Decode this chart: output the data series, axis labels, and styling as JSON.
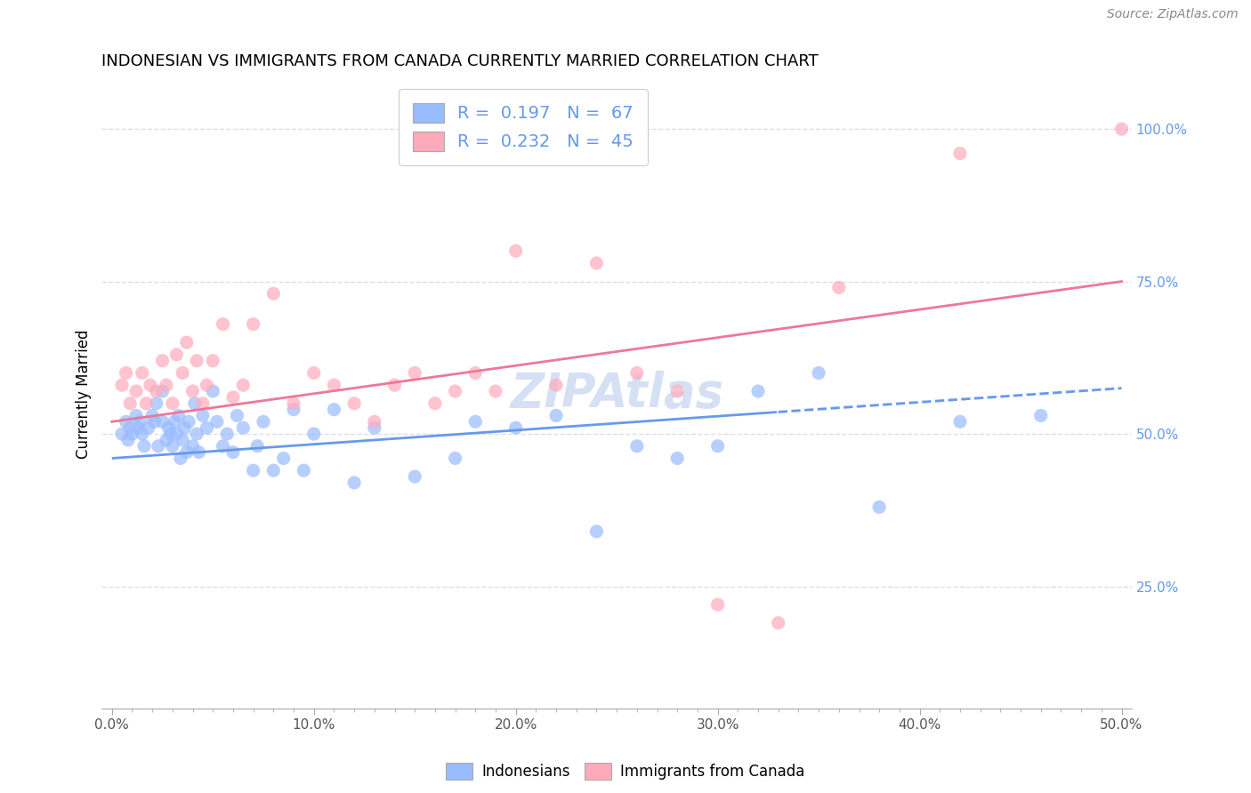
{
  "title": "INDONESIAN VS IMMIGRANTS FROM CANADA CURRENTLY MARRIED CORRELATION CHART",
  "source": "Source: ZipAtlas.com",
  "xlabel_ticks": [
    "0.0%",
    "",
    "",
    "",
    "",
    "",
    "",
    "",
    "",
    "",
    "10.0%",
    "",
    "",
    "",
    "",
    "",
    "",
    "",
    "",
    "",
    "20.0%",
    "",
    "",
    "",
    "",
    "",
    "",
    "",
    "",
    "",
    "30.0%",
    "",
    "",
    "",
    "",
    "",
    "",
    "",
    "",
    "",
    "40.0%",
    "",
    "",
    "",
    "",
    "",
    "",
    "",
    "",
    "",
    "50.0%"
  ],
  "xlabel_vals": [
    0.0,
    0.01,
    0.02,
    0.03,
    0.04,
    0.05,
    0.06,
    0.07,
    0.08,
    0.09,
    0.1,
    0.11,
    0.12,
    0.13,
    0.14,
    0.15,
    0.16,
    0.17,
    0.18,
    0.19,
    0.2,
    0.21,
    0.22,
    0.23,
    0.24,
    0.25,
    0.26,
    0.27,
    0.28,
    0.29,
    0.3,
    0.31,
    0.32,
    0.33,
    0.34,
    0.35,
    0.36,
    0.37,
    0.38,
    0.39,
    0.4,
    0.41,
    0.42,
    0.43,
    0.44,
    0.45,
    0.46,
    0.47,
    0.48,
    0.49,
    0.5
  ],
  "xlabel_major_ticks": [
    0.0,
    0.1,
    0.2,
    0.3,
    0.4,
    0.5
  ],
  "xlabel_major_labels": [
    "0.0%",
    "10.0%",
    "20.0%",
    "30.0%",
    "40.0%",
    "50.0%"
  ],
  "ylabel": "Currently Married",
  "ylabel_right_ticks": [
    "100.0%",
    "75.0%",
    "50.0%",
    "25.0%"
  ],
  "ylabel_right_vals": [
    1.0,
    0.75,
    0.5,
    0.25
  ],
  "xlim": [
    -0.005,
    0.505
  ],
  "ylim": [
    0.05,
    1.08
  ],
  "blue_line_color": "#6699EE",
  "pink_line_color": "#EE7799",
  "blue_scatter_color": "#99BBFF",
  "pink_scatter_color": "#FFAABB",
  "legend_R_blue": "0.197",
  "legend_N_blue": "67",
  "legend_R_pink": "0.232",
  "legend_N_pink": "45",
  "legend_label_blue": "Indonesians",
  "legend_label_pink": "Immigrants from Canada",
  "watermark": "ZIPAtlas",
  "blue_trendline": [
    0.0,
    0.46,
    0.5,
    0.575
  ],
  "pink_trendline": [
    0.0,
    0.52,
    0.5,
    0.75
  ],
  "indonesian_x": [
    0.005,
    0.007,
    0.008,
    0.009,
    0.01,
    0.012,
    0.013,
    0.014,
    0.015,
    0.016,
    0.018,
    0.02,
    0.021,
    0.022,
    0.023,
    0.025,
    0.025,
    0.027,
    0.028,
    0.029,
    0.03,
    0.031,
    0.032,
    0.033,
    0.034,
    0.035,
    0.036,
    0.037,
    0.038,
    0.04,
    0.041,
    0.042,
    0.043,
    0.045,
    0.047,
    0.05,
    0.052,
    0.055,
    0.057,
    0.06,
    0.062,
    0.065,
    0.07,
    0.072,
    0.075,
    0.08,
    0.085,
    0.09,
    0.095,
    0.1,
    0.11,
    0.12,
    0.13,
    0.15,
    0.17,
    0.18,
    0.2,
    0.22,
    0.24,
    0.26,
    0.28,
    0.3,
    0.32,
    0.35,
    0.38,
    0.42,
    0.46
  ],
  "indonesian_y": [
    0.5,
    0.52,
    0.49,
    0.51,
    0.5,
    0.53,
    0.51,
    0.52,
    0.5,
    0.48,
    0.51,
    0.53,
    0.52,
    0.55,
    0.48,
    0.57,
    0.52,
    0.49,
    0.51,
    0.5,
    0.48,
    0.52,
    0.5,
    0.53,
    0.46,
    0.49,
    0.51,
    0.47,
    0.52,
    0.48,
    0.55,
    0.5,
    0.47,
    0.53,
    0.51,
    0.57,
    0.52,
    0.48,
    0.5,
    0.47,
    0.53,
    0.51,
    0.44,
    0.48,
    0.52,
    0.44,
    0.46,
    0.54,
    0.44,
    0.5,
    0.54,
    0.42,
    0.51,
    0.43,
    0.46,
    0.52,
    0.51,
    0.53,
    0.34,
    0.48,
    0.46,
    0.48,
    0.57,
    0.6,
    0.38,
    0.52,
    0.53
  ],
  "canada_x": [
    0.005,
    0.007,
    0.009,
    0.012,
    0.015,
    0.017,
    0.019,
    0.022,
    0.025,
    0.027,
    0.03,
    0.032,
    0.035,
    0.037,
    0.04,
    0.042,
    0.045,
    0.047,
    0.05,
    0.055,
    0.06,
    0.065,
    0.07,
    0.08,
    0.09,
    0.1,
    0.11,
    0.12,
    0.13,
    0.14,
    0.15,
    0.16,
    0.17,
    0.18,
    0.19,
    0.2,
    0.22,
    0.24,
    0.26,
    0.28,
    0.3,
    0.33,
    0.36,
    0.42,
    0.5
  ],
  "canada_y": [
    0.58,
    0.6,
    0.55,
    0.57,
    0.6,
    0.55,
    0.58,
    0.57,
    0.62,
    0.58,
    0.55,
    0.63,
    0.6,
    0.65,
    0.57,
    0.62,
    0.55,
    0.58,
    0.62,
    0.68,
    0.56,
    0.58,
    0.68,
    0.73,
    0.55,
    0.6,
    0.58,
    0.55,
    0.52,
    0.58,
    0.6,
    0.55,
    0.57,
    0.6,
    0.57,
    0.8,
    0.58,
    0.78,
    0.6,
    0.57,
    0.22,
    0.19,
    0.74,
    0.96,
    1.0
  ],
  "grid_color": "#DDDDEE",
  "title_fontsize": 13,
  "source_fontsize": 10,
  "watermark_color": "#BBCCEE",
  "watermark_fontsize": 38,
  "scatter_size": 120
}
